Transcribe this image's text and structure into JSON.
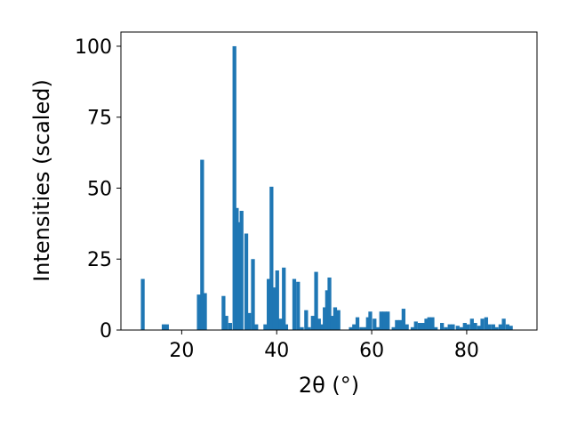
{
  "chart_data": {
    "type": "bar",
    "xlabel": "2θ (°)",
    "ylabel": "Intensities (scaled)",
    "xlim": [
      7.2,
      94.8
    ],
    "ylim": [
      0,
      105
    ],
    "xticks": [
      20,
      40,
      60,
      80
    ],
    "yticks": [
      0,
      25,
      50,
      75,
      100
    ],
    "bar_width": 0.8,
    "color": "#1f77b4",
    "grid": false,
    "x": [
      11.8,
      16.2,
      16.9,
      23.6,
      24.3,
      24.9,
      28.8,
      29.4,
      30.2,
      31.1,
      31.6,
      32.0,
      32.6,
      33.6,
      34.2,
      35.0,
      35.7,
      37.6,
      38.3,
      38.9,
      39.5,
      40.1,
      40.8,
      41.5,
      42.0,
      43.7,
      44.5,
      45.3,
      46.2,
      46.8,
      47.6,
      48.3,
      48.9,
      49.6,
      50.1,
      50.6,
      51.1,
      51.6,
      52.3,
      53.0,
      55.6,
      56.3,
      57.0,
      57.8,
      58.6,
      59.2,
      59.7,
      60.6,
      61.3,
      62.0,
      62.7,
      63.4,
      64.6,
      65.3,
      66.0,
      66.7,
      67.4,
      68.6,
      69.3,
      70.1,
      70.8,
      71.5,
      72.1,
      72.8,
      73.5,
      74.8,
      75.6,
      76.4,
      77.1,
      78.1,
      78.9,
      79.6,
      80.3,
      81.1,
      81.8,
      82.6,
      83.3,
      84.1,
      84.8,
      85.6,
      86.3,
      87.1,
      87.8,
      88.6,
      89.3
    ],
    "values": [
      18,
      2,
      2,
      12.5,
      60,
      13,
      12,
      5,
      2.5,
      100,
      43,
      38,
      42,
      34,
      6,
      25,
      2,
      2,
      18,
      50.5,
      15,
      21,
      4,
      22,
      2,
      18,
      17,
      1,
      7,
      1,
      5,
      20.5,
      4,
      2,
      8,
      14,
      18.5,
      5,
      8,
      7,
      1,
      2,
      4.5,
      1,
      1,
      4.5,
      6.5,
      4,
      1,
      6.5,
      6.5,
      6.5,
      1,
      3.5,
      3.5,
      7.5,
      2,
      1,
      3,
      2.5,
      2.5,
      4,
      4.5,
      4.5,
      1,
      2.5,
      1,
      2,
      2,
      1.5,
      1,
      2.5,
      2,
      4,
      2.5,
      1.5,
      4,
      4.5,
      2,
      2,
      1,
      2,
      4,
      2,
      1.5
    ]
  }
}
